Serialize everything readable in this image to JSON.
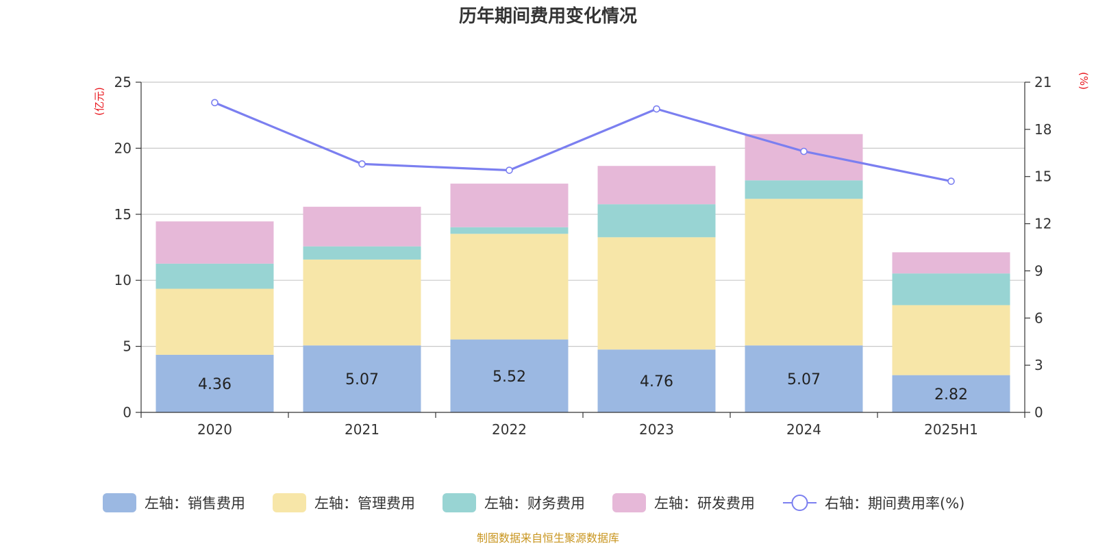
{
  "title": "历年期间费用变化情况",
  "source": "制图数据来自恒生聚源数据库",
  "left_axis_unit": "(亿元)",
  "right_axis_unit": "(%)",
  "colors": {
    "sales": "#9bb8e2",
    "admin": "#f7e6a8",
    "finance": "#98d4d3",
    "rnd": "#e6b8d8",
    "rate": "#7b7ff0",
    "unit_text": "#e8141b",
    "source_text": "#c8951f"
  },
  "chart_data": {
    "type": "bar",
    "stacked": true,
    "categories": [
      "2020",
      "2021",
      "2022",
      "2023",
      "2024",
      "2025H1"
    ],
    "series": [
      {
        "name": "左轴：销售费用",
        "axis": "left",
        "values": [
          4.36,
          5.07,
          5.52,
          4.76,
          5.07,
          2.82
        ]
      },
      {
        "name": "左轴：管理费用",
        "axis": "left",
        "values": [
          5.0,
          6.5,
          8.0,
          8.5,
          11.1,
          5.3
        ]
      },
      {
        "name": "左轴：财务费用",
        "axis": "left",
        "values": [
          1.9,
          1.0,
          0.5,
          2.5,
          1.4,
          2.4
        ]
      },
      {
        "name": "左轴：研发费用",
        "axis": "left",
        "values": [
          3.2,
          3.0,
          3.3,
          2.9,
          3.5,
          1.6
        ]
      },
      {
        "name": "右轴：期间费用率(%)",
        "axis": "right",
        "type": "line",
        "values": [
          19.7,
          15.8,
          15.4,
          19.3,
          16.6,
          14.7
        ]
      }
    ],
    "left_axis": {
      "min": 0,
      "max": 25,
      "ticks": [
        0,
        5,
        10,
        15,
        20,
        25
      ]
    },
    "right_axis": {
      "min": 0,
      "max": 21,
      "ticks": [
        0,
        3,
        6,
        9,
        12,
        15,
        18,
        21
      ]
    },
    "data_labels": [
      "4.36",
      "5.07",
      "5.52",
      "4.76",
      "5.07",
      "2.82"
    ],
    "grid": true,
    "legend_position": "bottom"
  }
}
